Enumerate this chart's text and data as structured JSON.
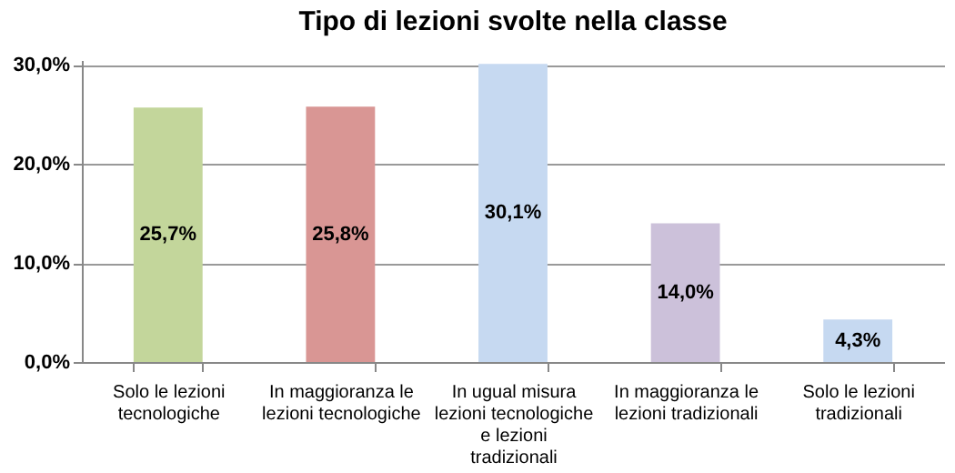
{
  "chart_data": {
    "type": "bar",
    "title": "Tipo di lezioni svolte nella classe",
    "categories": [
      "Solo le lezioni tecnologiche",
      "In maggioranza le lezioni tecnologiche",
      "In ugual misura lezioni tecnologiche e lezioni tradizionali",
      "In maggioranza le lezioni tradizionali",
      "Solo le lezioni tradizionali"
    ],
    "values": [
      25.7,
      25.8,
      30.1,
      14.0,
      4.3
    ],
    "colors": [
      "#c3d69b",
      "#d99694",
      "#c6d9f1",
      "#ccc1da",
      "#c6d9f1"
    ],
    "value_labels": [
      "25,7%",
      "25,8%",
      "30,1%",
      "14,0%",
      "4,3%"
    ],
    "ylim": [
      0,
      30.5
    ],
    "yticks": [
      {
        "value": 0,
        "label": "0,0%"
      },
      {
        "value": 10,
        "label": "10,0%"
      },
      {
        "value": 20,
        "label": "20,0%"
      },
      {
        "value": 30,
        "label": "30,0%"
      }
    ],
    "grid": "y"
  }
}
